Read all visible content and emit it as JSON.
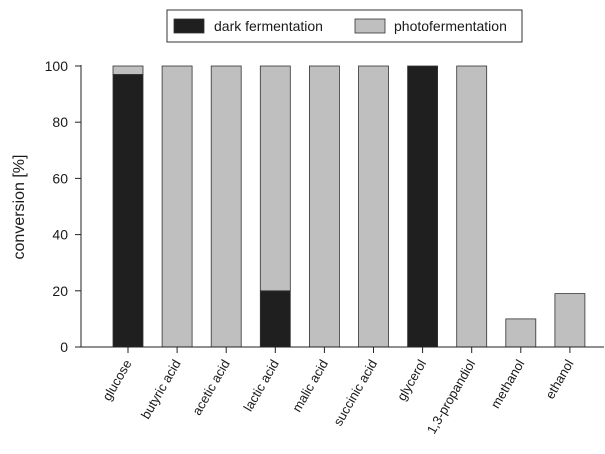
{
  "chart_data": {
    "type": "bar",
    "stacked": true,
    "categories": [
      "glucose",
      "butyric acid",
      "acetic acid",
      "lactic acid",
      "malic acid",
      "succinic acid",
      "glycerol",
      "1,3-propandiol",
      "methanol",
      "ethanol"
    ],
    "series": [
      {
        "name": "dark fermentation",
        "values": [
          97,
          0,
          0,
          20,
          0,
          0,
          100,
          0,
          0,
          0
        ],
        "color": "#1f1f1f"
      },
      {
        "name": "photofermentation",
        "values": [
          3,
          100,
          100,
          80,
          100,
          100,
          0,
          100,
          10,
          19
        ],
        "color": "#bfbfbf"
      }
    ],
    "title": "",
    "xlabel": "",
    "ylabel": "conversion [%]",
    "ylim": [
      0,
      100
    ],
    "yticks": [
      0,
      20,
      40,
      60,
      80,
      100
    ],
    "grid": false,
    "legend_position": "top"
  }
}
